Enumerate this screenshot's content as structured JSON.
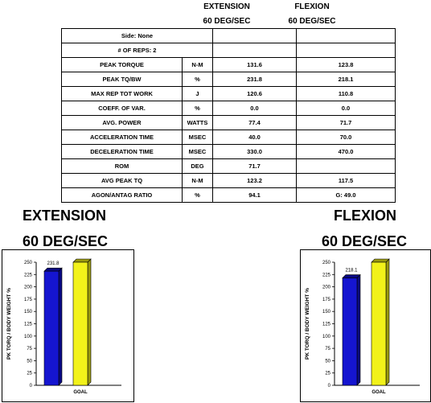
{
  "header": {
    "extension_line1": "EXTENSION",
    "extension_line2": "60 DEG/SEC",
    "flexion_line1": "FLEXION",
    "flexion_line2": "60 DEG/SEC"
  },
  "table": {
    "side": "Side: None",
    "reps": "# OF REPS: 2",
    "rows": [
      {
        "label": "PEAK TORQUE",
        "unit": "N-M",
        "ext": "131.6",
        "flex": "123.8"
      },
      {
        "label": "PEAK TQ/BW",
        "unit": "%",
        "ext": "231.8",
        "flex": "218.1"
      },
      {
        "label": "MAX REP TOT WORK",
        "unit": "J",
        "ext": "120.6",
        "flex": "110.8"
      },
      {
        "label": "COEFF. OF VAR.",
        "unit": "%",
        "ext": "0.0",
        "flex": "0.0"
      },
      {
        "label": "AVG. POWER",
        "unit": "WATTS",
        "ext": "77.4",
        "flex": "71.7"
      },
      {
        "label": "ACCELERATION TIME",
        "unit": "MSEC",
        "ext": "40.0",
        "flex": "70.0"
      },
      {
        "label": "DECELERATION TIME",
        "unit": "MSEC",
        "ext": "330.0",
        "flex": "470.0"
      },
      {
        "label": "ROM",
        "unit": "DEG",
        "ext": "71.7",
        "flex": ""
      },
      {
        "label": "AVG PEAK TQ",
        "unit": "N-M",
        "ext": "123.2",
        "flex": "117.5"
      },
      {
        "label": "AGON/ANTAG RATIO",
        "unit": "%",
        "ext": "94.1",
        "flex": "G: 49.0"
      }
    ]
  },
  "ext_chart": {
    "title": "EXTENSION",
    "speed": "60 DEG/SEC"
  },
  "flex_chart": {
    "title": "FLEXION",
    "speed": "60 DEG/SEC"
  },
  "chart_data": [
    {
      "type": "bar",
      "categories": [
        "",
        "GOAL"
      ],
      "values": [
        231.8,
        250
      ],
      "value_label": "231.8",
      "ylabel": "PK TORQ / BODY WEIGHT   %",
      "ylim": [
        0,
        250
      ],
      "yticks": [
        "0",
        "25",
        "50",
        "75",
        "100",
        "125",
        "150",
        "175",
        "200",
        "225",
        "250"
      ],
      "colors": [
        "#1515d0",
        "#f2f21a"
      ]
    },
    {
      "type": "bar",
      "categories": [
        "",
        "GOAL"
      ],
      "values": [
        218.1,
        250
      ],
      "value_label": "218.1",
      "ylabel": "PK TORQ / BODY WEIGHT   %",
      "ylim": [
        0,
        250
      ],
      "yticks": [
        "0",
        "25",
        "50",
        "75",
        "100",
        "125",
        "150",
        "175",
        "200",
        "225",
        "250"
      ],
      "colors": [
        "#1515d0",
        "#f2f21a"
      ]
    }
  ]
}
